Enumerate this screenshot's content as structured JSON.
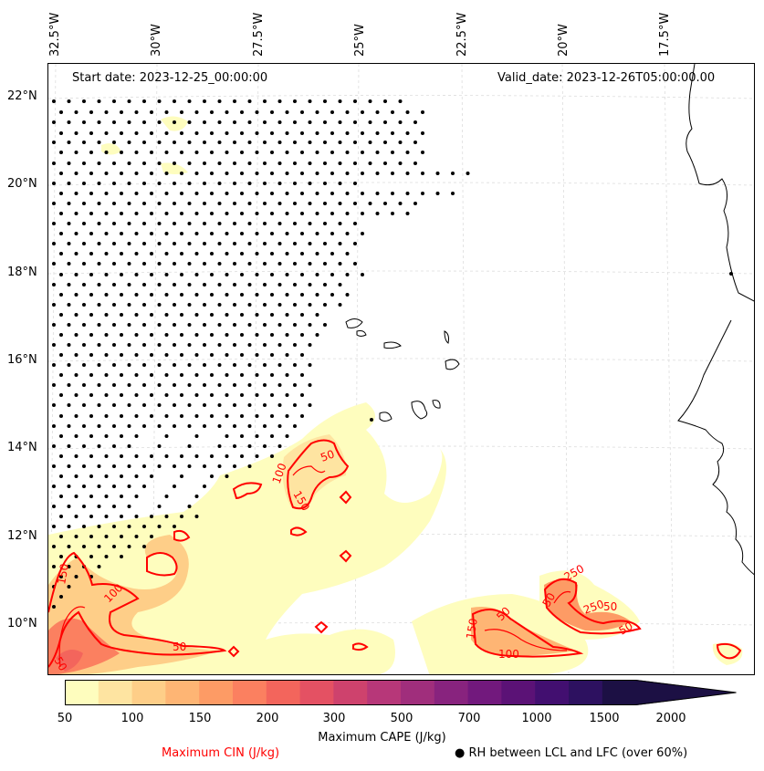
{
  "header": {
    "start_date": "Start date: 2023-12-25_00:00:00",
    "valid_date": "Valid_date: 2023-12-26T05:00:00.00"
  },
  "axes": {
    "lon_labels": [
      "32.5°W",
      "30°W",
      "27.5°W",
      "25°W",
      "22.5°W",
      "20°W",
      "17.5°W"
    ],
    "lat_labels": [
      "22°N",
      "20°N",
      "18°N",
      "16°N",
      "14°N",
      "12°N",
      "10°N"
    ]
  },
  "colorbar": {
    "title": "Maximum CAPE (J/kg)",
    "ticks": [
      "50",
      "100",
      "150",
      "200",
      "300",
      "500",
      "700",
      "1000",
      "1500",
      "2000"
    ],
    "colors": [
      "#fefdbe",
      "#fee4a1",
      "#fece88",
      "#feb574",
      "#fd9b65",
      "#fb8060",
      "#f3655c",
      "#e45163",
      "#ce426d",
      "#b73779",
      "#a02e7c",
      "#88237e",
      "#72197d",
      "#5b1276",
      "#420f70",
      "#2d1160",
      "#1c1044"
    ]
  },
  "legend": {
    "cin_label": "Maximum CIN (J/kg)",
    "rh_label": "● RH between LCL and LFC (over 60%)",
    "cin_color": "#ff0000"
  },
  "contour_labels": [
    "50",
    "100",
    "150",
    "50",
    "100",
    "150",
    "50",
    "150",
    "50",
    "250",
    "50",
    "100",
    "250",
    "50",
    "50"
  ]
}
